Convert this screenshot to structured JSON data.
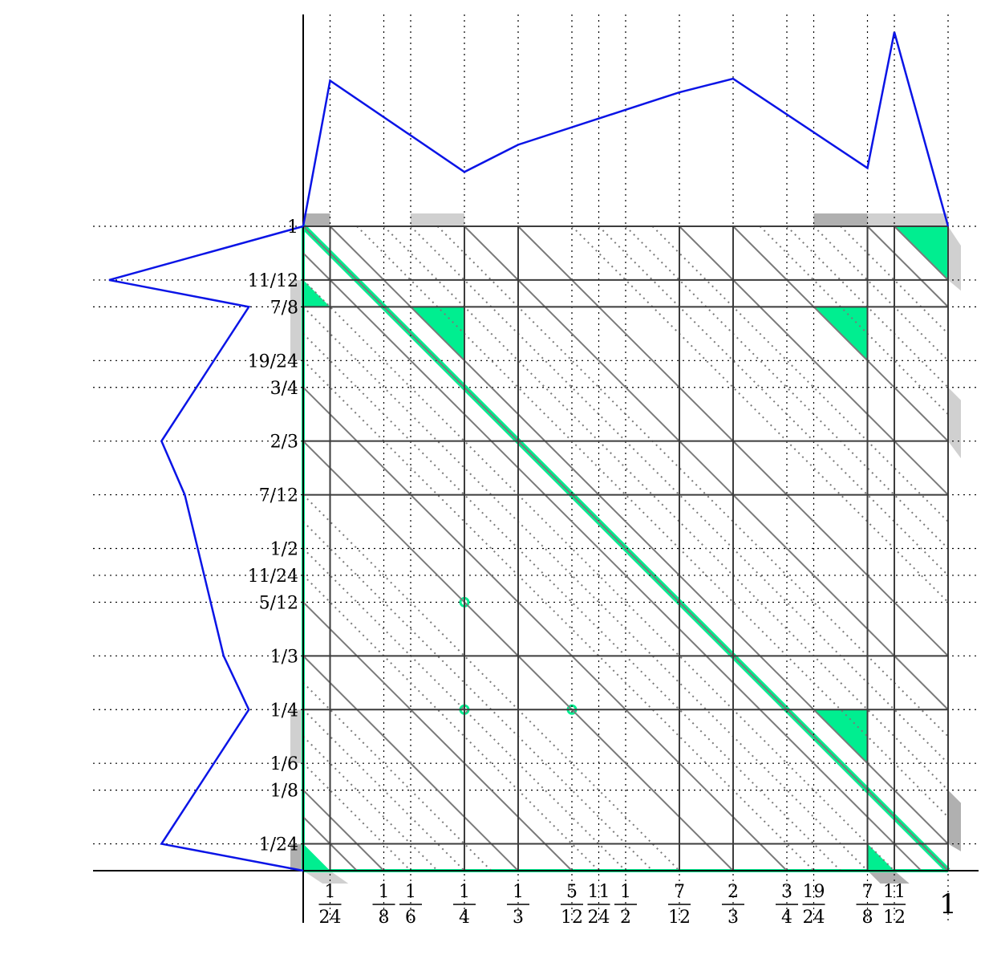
{
  "x_ticks": [
    {
      "num": "1",
      "den": "24",
      "value": 0.041667
    },
    {
      "num": "1",
      "den": "8",
      "value": 0.125
    },
    {
      "num": "1",
      "den": "6",
      "value": 0.166667
    },
    {
      "num": "1",
      "den": "4",
      "value": 0.25
    },
    {
      "num": "1",
      "den": "3",
      "value": 0.333333
    },
    {
      "num": "5",
      "den": "12",
      "value": 0.416667
    },
    {
      "num": "11",
      "den": "24",
      "value": 0.458333
    },
    {
      "num": "1",
      "den": "2",
      "value": 0.5
    },
    {
      "num": "7",
      "den": "12",
      "value": 0.583333
    },
    {
      "num": "2",
      "den": "3",
      "value": 0.666667
    },
    {
      "num": "3",
      "den": "4",
      "value": 0.75
    },
    {
      "num": "19",
      "den": "24",
      "value": 0.791667
    },
    {
      "num": "7",
      "den": "8",
      "value": 0.875
    },
    {
      "num": "11",
      "den": "12",
      "value": 0.916667
    }
  ],
  "x_end_label": "1",
  "y_ticks": [
    {
      "label": "1",
      "value": 1
    },
    {
      "label": "11/12",
      "value": 0.916667
    },
    {
      "label": "7/8",
      "value": 0.875
    },
    {
      "label": "19/24",
      "value": 0.791667
    },
    {
      "label": "3/4",
      "value": 0.75
    },
    {
      "label": "2/3",
      "value": 0.666667
    },
    {
      "label": "7/12",
      "value": 0.583333
    },
    {
      "label": "1/2",
      "value": 0.5
    },
    {
      "label": "11/24",
      "value": 0.458333
    },
    {
      "label": "5/12",
      "value": 0.416667
    },
    {
      "label": "1/3",
      "value": 0.333333
    },
    {
      "label": "1/4",
      "value": 0.25
    },
    {
      "label": "1/6",
      "value": 0.166667
    },
    {
      "label": "1/8",
      "value": 0.125
    },
    {
      "label": "1/24",
      "value": 0.041667
    }
  ],
  "grid_solid": [
    0.041667,
    0.25,
    0.333333,
    0.583333,
    0.666667,
    0.875,
    0.916667
  ],
  "diagonal_solid_offsets": [
    -0.916667,
    -0.875,
    -0.666667,
    -0.583333,
    -0.333333,
    -0.25,
    -0.041667,
    0.041667,
    0.25,
    0.333333,
    0.583333,
    0.666667,
    0.875,
    0.916667
  ],
  "diagonal_dotted_offsets": [
    -0.833333,
    -0.791667,
    -0.75,
    -0.708333,
    -0.541667,
    -0.5,
    -0.458333,
    -0.416667,
    -0.208333,
    -0.166667,
    -0.125,
    -0.083333,
    0.083333,
    0.125,
    0.166667,
    0.208333,
    0.416667,
    0.458333,
    0.5,
    0.541667,
    0.708333,
    0.75,
    0.791667,
    0.833333
  ],
  "top_profile": [
    [
      0,
      0
    ],
    [
      0.041667,
      0.75
    ],
    [
      0.25,
      0.28
    ],
    [
      0.333333,
      0.42
    ],
    [
      0.583333,
      0.69
    ],
    [
      0.666667,
      0.76
    ],
    [
      0.875,
      0.3
    ],
    [
      0.916667,
      1.0
    ],
    [
      1,
      0
    ]
  ],
  "left_profile": [
    [
      1,
      0
    ],
    [
      0.916667,
      1.0
    ],
    [
      0.875,
      0.28
    ],
    [
      0.666667,
      0.73
    ],
    [
      0.583333,
      0.61
    ],
    [
      0.333333,
      0.41
    ],
    [
      0.25,
      0.28
    ],
    [
      0.041667,
      0.73
    ],
    [
      0,
      0
    ]
  ],
  "green_triangles": [
    [
      [
        0,
        0
      ],
      [
        0.041667,
        0
      ],
      [
        0,
        0.041667
      ]
    ],
    [
      [
        0.875,
        0
      ],
      [
        0.916667,
        0
      ],
      [
        0.875,
        0.041667
      ]
    ],
    [
      [
        0,
        0.916667
      ],
      [
        0.041667,
        0.875
      ],
      [
        0,
        0.875
      ]
    ],
    [
      [
        0.166667,
        0.875
      ],
      [
        0.25,
        0.875
      ],
      [
        0.25,
        0.791667
      ]
    ],
    [
      [
        0.791667,
        0.875
      ],
      [
        0.875,
        0.875
      ],
      [
        0.875,
        0.791667
      ]
    ],
    [
      [
        0.791667,
        0.25
      ],
      [
        0.875,
        0.25
      ],
      [
        0.875,
        0.166667
      ]
    ],
    [
      [
        0.916667,
        1
      ],
      [
        1,
        1
      ],
      [
        1,
        0.916667
      ]
    ]
  ],
  "green_points": [
    [
      0.25,
      0.416667
    ],
    [
      0.25,
      0.25
    ],
    [
      0.416667,
      0.25
    ]
  ],
  "colors": {
    "profile": "#0a14e6",
    "highlight": "#00ee90",
    "grid": "#3c3c3c",
    "diagonal": "#7a7a7a",
    "shadow_light": "#d0d0d0",
    "shadow_dark": "#b0b0b0"
  }
}
